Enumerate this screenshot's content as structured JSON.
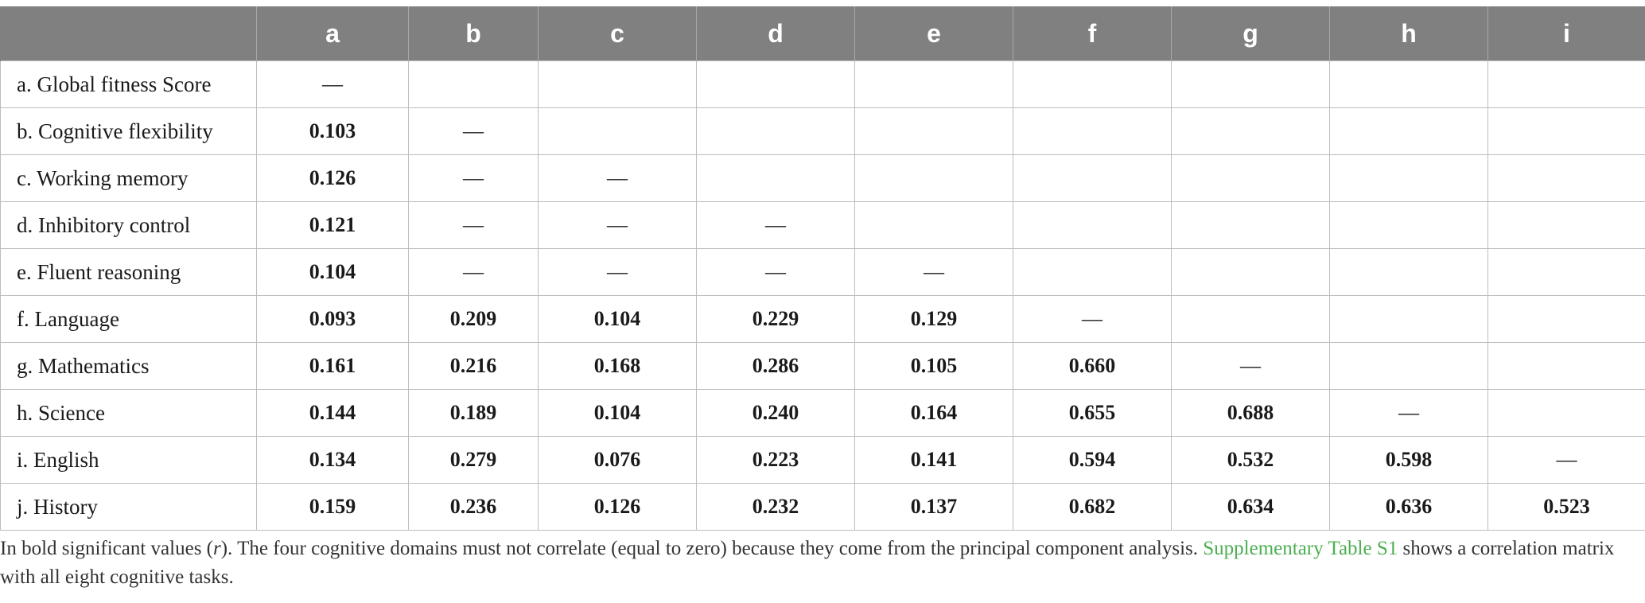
{
  "table": {
    "columns": [
      "",
      "a",
      "b",
      "c",
      "d",
      "e",
      "f",
      "g",
      "h",
      "i"
    ],
    "rows": [
      {
        "label": "a. Global fitness Score",
        "cells": [
          "—",
          "",
          "",
          "",
          "",
          "",
          "",
          "",
          ""
        ]
      },
      {
        "label": "b. Cognitive flexibility",
        "cells": [
          "0.103",
          "—",
          "",
          "",
          "",
          "",
          "",
          "",
          ""
        ]
      },
      {
        "label": "c. Working memory",
        "cells": [
          "0.126",
          "—",
          "—",
          "",
          "",
          "",
          "",
          "",
          ""
        ]
      },
      {
        "label": "d. Inhibitory control",
        "cells": [
          "0.121",
          "—",
          "—",
          "—",
          "",
          "",
          "",
          "",
          ""
        ]
      },
      {
        "label": "e. Fluent reasoning",
        "cells": [
          "0.104",
          "—",
          "—",
          "—",
          "—",
          "",
          "",
          "",
          ""
        ]
      },
      {
        "label": "f. Language",
        "cells": [
          "0.093",
          "0.209",
          "0.104",
          "0.229",
          "0.129",
          "—",
          "",
          "",
          ""
        ]
      },
      {
        "label": "g. Mathematics",
        "cells": [
          "0.161",
          "0.216",
          "0.168",
          "0.286",
          "0.105",
          "0.660",
          "—",
          "",
          ""
        ]
      },
      {
        "label": "h. Science",
        "cells": [
          "0.144",
          "0.189",
          "0.104",
          "0.240",
          "0.164",
          "0.655",
          "0.688",
          "—",
          ""
        ]
      },
      {
        "label": "i. English",
        "cells": [
          "0.134",
          "0.279",
          "0.076",
          "0.223",
          "0.141",
          "0.594",
          "0.532",
          "0.598",
          "—"
        ]
      },
      {
        "label": "j. History",
        "cells": [
          "0.159",
          "0.236",
          "0.126",
          "0.232",
          "0.137",
          "0.682",
          "0.634",
          "0.636",
          "0.523"
        ]
      }
    ]
  },
  "footnote": {
    "part1": "In bold significant values (",
    "r_symbol": "r",
    "part2": "). The four cognitive domains must not correlate (equal to zero) because they come from the principal component analysis. ",
    "link_text": "Supplementary Table S1",
    "part3": " shows a correlation matrix with all eight cognitive tasks."
  }
}
